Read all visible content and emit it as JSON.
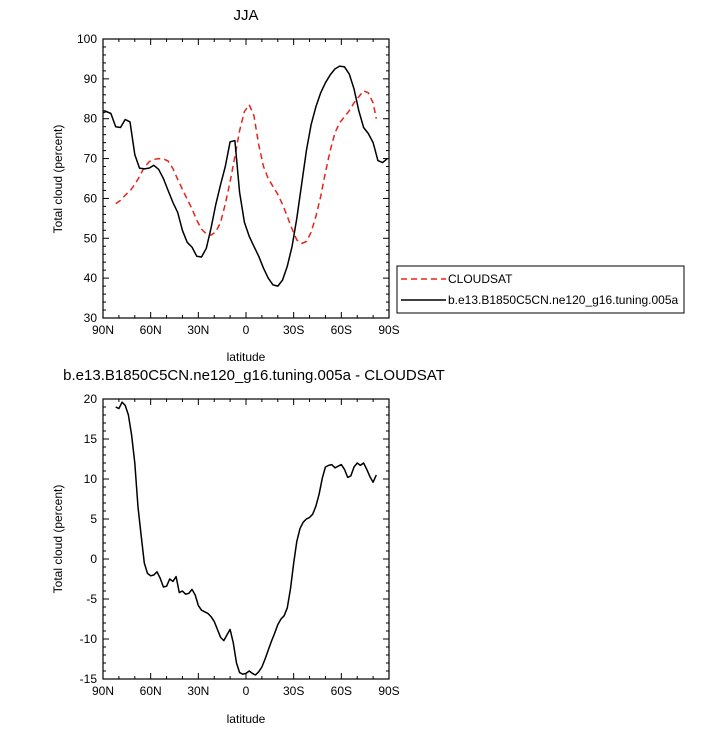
{
  "chart_data": [
    {
      "type": "line",
      "title": "JJA",
      "xlabel": "latitude",
      "ylabel": "Total cloud (percent)",
      "xlim": [
        -90,
        90
      ],
      "ylim": [
        30,
        100
      ],
      "x_ticks": [
        -90,
        -60,
        -30,
        0,
        30,
        60,
        90
      ],
      "x_tick_labels": [
        "90N",
        "60N",
        "30N",
        "0",
        "30S",
        "60S",
        "90S"
      ],
      "y_ticks": [
        30,
        40,
        50,
        60,
        70,
        80,
        90,
        100
      ],
      "y_tick_labels": [
        "30",
        "40",
        "50",
        "60",
        "70",
        "80",
        "90",
        "100"
      ],
      "grid": false,
      "legend_placement": "outside-right",
      "series": [
        {
          "name": "CLOUDSAT",
          "color": "#e8231c",
          "dash": "dashed",
          "x": [
            -82,
            -79,
            -76,
            -73,
            -70,
            -67,
            -64,
            -61,
            -58,
            -55,
            -52,
            -49,
            -46,
            -43,
            -40,
            -37,
            -34,
            -31,
            -28,
            -25,
            -22,
            -19,
            -16,
            -13,
            -10,
            -7,
            -4,
            -1,
            2,
            5,
            8,
            11,
            14,
            17,
            20,
            23,
            26,
            29,
            32,
            35,
            38,
            41,
            44,
            47,
            50,
            53,
            56,
            59,
            62,
            65,
            68,
            71,
            74,
            77,
            80,
            82
          ],
          "values": [
            58.7,
            59.5,
            60.8,
            61.9,
            63.5,
            65.5,
            67.8,
            69.2,
            69.8,
            70.0,
            69.9,
            69.4,
            67.5,
            64.8,
            62.3,
            59.8,
            57.4,
            54.6,
            52.3,
            51.1,
            50.8,
            51.6,
            54.0,
            58.6,
            64.2,
            70.5,
            77.0,
            81.8,
            83.5,
            80.8,
            73.5,
            68.0,
            65.0,
            63.0,
            61.0,
            58.5,
            55.5,
            52.3,
            49.6,
            48.7,
            49.2,
            51.5,
            55.5,
            60.5,
            66.5,
            72.0,
            76.5,
            79.0,
            80.5,
            82.0,
            84.0,
            85.5,
            87.0,
            86.5,
            84.0,
            80.0
          ]
        },
        {
          "name": "b.e13.B1850C5CN.ne120_g16.tuning.005a",
          "color": "#000000",
          "dash": "solid",
          "x": [
            -90,
            -88,
            -85,
            -82,
            -79,
            -76,
            -73,
            -70,
            -67,
            -64,
            -61,
            -58,
            -55,
            -52,
            -49,
            -46,
            -43,
            -40,
            -37,
            -34,
            -31,
            -28,
            -25,
            -22,
            -19,
            -16,
            -13,
            -10,
            -7,
            -4,
            -1,
            2,
            5,
            8,
            11,
            14,
            17,
            20,
            23,
            26,
            29,
            32,
            35,
            38,
            41,
            44,
            47,
            50,
            53,
            56,
            59,
            62,
            65,
            68,
            71,
            74,
            77,
            80,
            83,
            86,
            89
          ],
          "values": [
            81.5,
            81.8,
            81.3,
            78.0,
            77.8,
            79.8,
            79.2,
            71.0,
            67.6,
            67.4,
            67.6,
            68.3,
            67.3,
            65.0,
            62.0,
            59.0,
            56.5,
            52.0,
            49.0,
            47.8,
            45.5,
            45.3,
            47.5,
            52.5,
            58.5,
            63.5,
            68.0,
            74.2,
            74.5,
            61.5,
            54.0,
            50.5,
            48.0,
            45.5,
            42.5,
            40.0,
            38.3,
            38.0,
            39.5,
            43.0,
            48.0,
            55.0,
            63.5,
            72.0,
            78.5,
            83.0,
            86.5,
            89.0,
            91.0,
            92.5,
            93.2,
            93.0,
            91.2,
            87.5,
            82.0,
            77.8,
            76.3,
            74.0,
            69.5,
            69.0,
            70.0
          ]
        }
      ]
    },
    {
      "type": "line",
      "title": "b.e13.B1850C5CN.ne120_g16.tuning.005a - CLOUDSAT",
      "xlabel": "latitude",
      "ylabel": "Total cloud (percent)",
      "xlim": [
        -90,
        90
      ],
      "ylim": [
        -15,
        20
      ],
      "x_ticks": [
        -90,
        -60,
        -30,
        0,
        30,
        60,
        90
      ],
      "x_tick_labels": [
        "90N",
        "60N",
        "30N",
        "0",
        "30S",
        "60S",
        "90S"
      ],
      "y_ticks": [
        -15,
        -10,
        -5,
        0,
        5,
        10,
        15,
        20
      ],
      "y_tick_labels": [
        "-15",
        "-10",
        "-5",
        "0",
        "5",
        "10",
        "15",
        "20"
      ],
      "grid": false,
      "series": [
        {
          "color": "#000000",
          "dash": "solid",
          "x": [
            -82,
            -80,
            -78,
            -76,
            -74,
            -72,
            -70,
            -68,
            -66,
            -64,
            -62,
            -60,
            -58,
            -56,
            -54,
            -52,
            -50,
            -48,
            -46,
            -44,
            -42,
            -40,
            -38,
            -36,
            -34,
            -32,
            -30,
            -28,
            -26,
            -24,
            -22,
            -20,
            -18,
            -16,
            -14,
            -12,
            -10,
            -8,
            -6,
            -4,
            -2,
            0,
            2,
            4,
            6,
            8,
            10,
            12,
            14,
            16,
            18,
            20,
            22,
            24,
            26,
            28,
            30,
            32,
            34,
            36,
            38,
            40,
            42,
            44,
            46,
            48,
            50,
            52,
            54,
            56,
            58,
            60,
            62,
            64,
            66,
            68,
            70,
            72,
            74,
            76,
            78,
            80,
            82
          ],
          "values": [
            19.0,
            18.8,
            19.6,
            19.2,
            18.0,
            15.5,
            12.0,
            6.5,
            3.0,
            -0.5,
            -1.8,
            -2.1,
            -2.0,
            -1.6,
            -2.4,
            -3.5,
            -3.4,
            -2.5,
            -2.8,
            -2.2,
            -4.2,
            -4.0,
            -4.4,
            -4.3,
            -3.8,
            -4.5,
            -5.8,
            -6.4,
            -6.6,
            -6.8,
            -7.2,
            -7.8,
            -8.8,
            -9.8,
            -10.2,
            -9.5,
            -8.8,
            -10.5,
            -13.0,
            -14.2,
            -14.4,
            -14.3,
            -14.0,
            -14.3,
            -14.5,
            -14.1,
            -13.5,
            -12.5,
            -11.4,
            -10.3,
            -9.3,
            -8.2,
            -7.5,
            -7.1,
            -6.1,
            -3.7,
            -0.5,
            2.2,
            3.8,
            4.6,
            5.0,
            5.2,
            5.6,
            6.6,
            8.1,
            10.1,
            11.5,
            11.7,
            11.8,
            11.4,
            11.6,
            11.8,
            11.2,
            10.2,
            10.4,
            11.5,
            12.0,
            11.7,
            12.0,
            11.2,
            10.3,
            9.6,
            10.5
          ]
        }
      ]
    }
  ]
}
